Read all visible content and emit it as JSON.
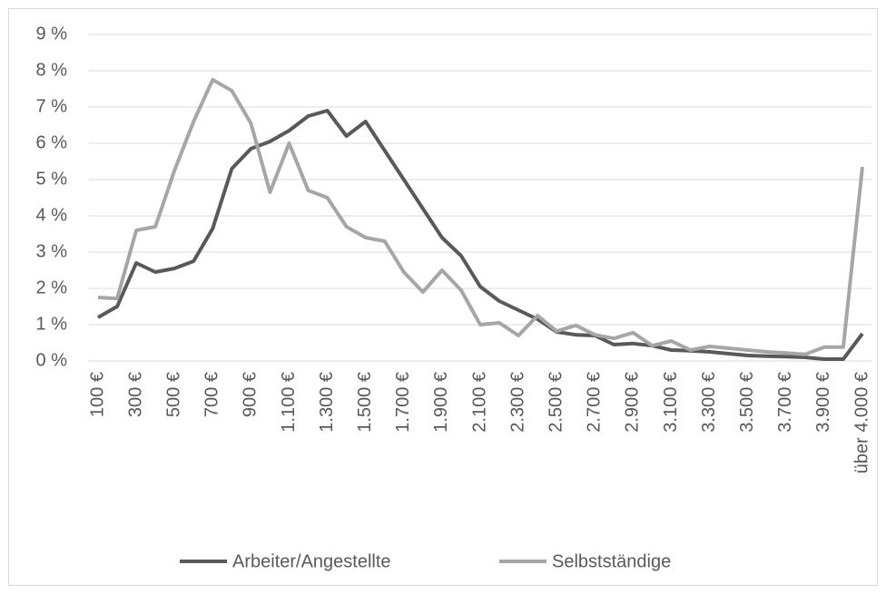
{
  "chart_data": {
    "type": "line",
    "categories": [
      "100 €",
      null,
      "300 €",
      null,
      "500 €",
      null,
      "700 €",
      null,
      "900 €",
      null,
      "1.100 €",
      null,
      "1.300 €",
      null,
      "1.500 €",
      null,
      "1.700 €",
      null,
      "1.900 €",
      null,
      "2.100 €",
      null,
      "2.300 €",
      null,
      "2.500 €",
      null,
      "2.700 €",
      null,
      "2.900 €",
      null,
      "3.100 €",
      null,
      "3.300 €",
      null,
      "3.500 €",
      null,
      "3.700 €",
      null,
      "3.900 €",
      null,
      "über 4.000 €"
    ],
    "series": [
      {
        "name": "Arbeiter/Angestellte",
        "color": "#595959",
        "values": [
          1.2,
          1.5,
          2.7,
          2.45,
          2.55,
          2.75,
          3.65,
          5.3,
          5.85,
          6.05,
          6.35,
          6.75,
          6.9,
          6.2,
          6.6,
          5.8,
          5.0,
          4.2,
          3.4,
          2.9,
          2.05,
          1.65,
          1.4,
          1.15,
          0.8,
          0.72,
          0.7,
          0.45,
          0.48,
          0.42,
          0.3,
          0.28,
          0.25,
          0.2,
          0.15,
          0.13,
          0.12,
          0.1,
          0.05,
          0.05,
          0.75
        ]
      },
      {
        "name": "Selbstständige",
        "color": "#a6a6a6",
        "values": [
          1.75,
          1.72,
          3.6,
          3.7,
          5.25,
          6.6,
          7.75,
          7.45,
          6.55,
          4.65,
          6.0,
          4.7,
          4.5,
          3.7,
          3.4,
          3.3,
          2.45,
          1.9,
          2.5,
          1.95,
          1.0,
          1.05,
          0.7,
          1.25,
          0.82,
          0.98,
          0.72,
          0.62,
          0.78,
          0.42,
          0.55,
          0.3,
          0.4,
          0.35,
          0.3,
          0.25,
          0.22,
          0.18,
          0.38,
          0.38,
          5.35
        ]
      }
    ],
    "ylim": [
      0,
      9
    ],
    "yticks": [
      {
        "value": 0,
        "label": "0 %"
      },
      {
        "value": 1,
        "label": "1 %"
      },
      {
        "value": 2,
        "label": "2 %"
      },
      {
        "value": 3,
        "label": "3 %"
      },
      {
        "value": 4,
        "label": "4 %"
      },
      {
        "value": 5,
        "label": "5 %"
      },
      {
        "value": 6,
        "label": "6 %"
      },
      {
        "value": 7,
        "label": "7 %"
      },
      {
        "value": 8,
        "label": "8 %"
      },
      {
        "value": 9,
        "label": "9 %"
      }
    ],
    "grid": true
  }
}
